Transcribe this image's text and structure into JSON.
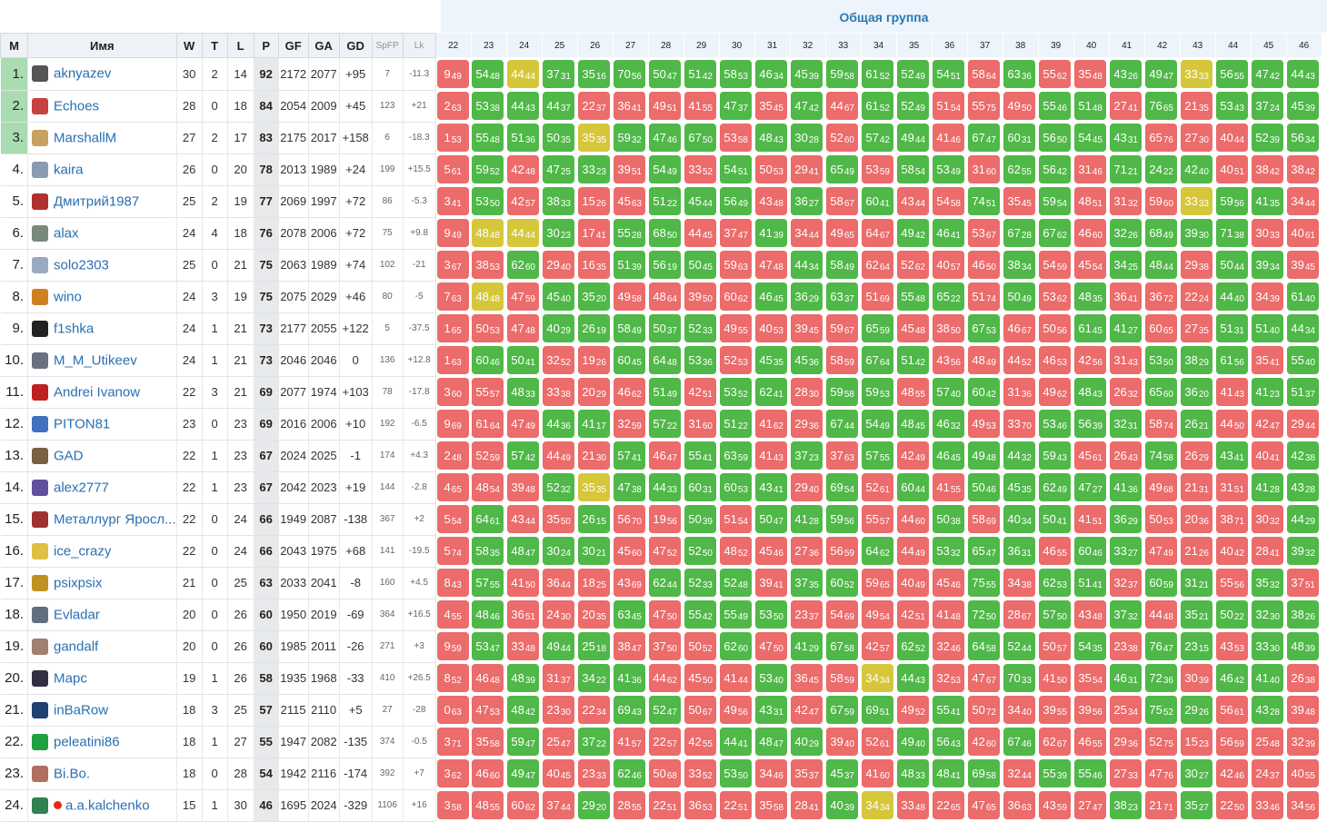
{
  "group_title": "Общая группа",
  "headers": {
    "pos": "М",
    "name": "Имя",
    "w": "W",
    "t": "T",
    "l": "L",
    "p": "P",
    "gf": "GF",
    "ga": "GA",
    "gd": "GD",
    "spfp": "SpFP",
    "lk": "Lk"
  },
  "rounds": [
    22,
    23,
    24,
    25,
    26,
    27,
    28,
    29,
    30,
    31,
    32,
    33,
    34,
    35,
    36,
    37,
    38,
    39,
    40,
    41,
    42,
    43,
    44,
    45,
    46
  ],
  "players": [
    {
      "pos": "1.",
      "name": "aknyazev",
      "w": 30,
      "t": 2,
      "l": 14,
      "p": 92,
      "gf": 2172,
      "ga": 2077,
      "gd": "+95",
      "spfp": 7,
      "lk": "-11.3",
      "avatar": "#555",
      "r": [
        "9/49",
        "54/48",
        "44/44",
        "37/31",
        "35/16",
        "70/56",
        "50/47",
        "51/42",
        "58/53",
        "46/34",
        "45/39",
        "59/58",
        "61/52",
        "52/49",
        "54/51",
        "58/64",
        "63/36",
        "55/62",
        "35/48",
        "43/26",
        "49/47",
        "33/33",
        "56/55",
        "47/42",
        "44/43"
      ]
    },
    {
      "pos": "2.",
      "name": "Echoes",
      "w": 28,
      "t": 0,
      "l": 18,
      "p": 84,
      "gf": 2054,
      "ga": 2009,
      "gd": "+45",
      "spfp": 123,
      "lk": "+21",
      "avatar": "#c84040",
      "r": [
        "2/63",
        "53/38",
        "44/43",
        "44/37",
        "22/37",
        "36/41",
        "49/51",
        "41/55",
        "47/37",
        "35/45",
        "47/42",
        "44/67",
        "61/52",
        "52/49",
        "51/54",
        "55/75",
        "49/50",
        "55/46",
        "51/48",
        "27/41",
        "76/65",
        "21/35",
        "53/43",
        "37/24",
        "45/39"
      ]
    },
    {
      "pos": "3.",
      "name": "MarshallM",
      "w": 27,
      "t": 2,
      "l": 17,
      "p": 83,
      "gf": 2175,
      "ga": 2017,
      "gd": "+158",
      "spfp": 6,
      "lk": "-18.3",
      "avatar": "#c8a060",
      "r": [
        "1/53",
        "55/48",
        "51/36",
        "50/35",
        "35/35",
        "59/32",
        "47/46",
        "67/50",
        "53/58",
        "48/43",
        "30/28",
        "52/60",
        "57/42",
        "49/44",
        "41/46",
        "67/47",
        "60/31",
        "56/50",
        "54/45",
        "43/31",
        "65/76",
        "27/30",
        "40/44",
        "52/39",
        "56/34"
      ]
    },
    {
      "pos": "4.",
      "name": "kaira",
      "w": 26,
      "t": 0,
      "l": 20,
      "p": 78,
      "gf": 2013,
      "ga": 1989,
      "gd": "+24",
      "spfp": 199,
      "lk": "+15.5",
      "avatar": "#8a9ab0",
      "r": [
        "5/61",
        "59/52",
        "42/48",
        "47/25",
        "33/23",
        "39/51",
        "54/49",
        "33/52",
        "54/51",
        "50/53",
        "29/41",
        "65/49",
        "53/59",
        "58/54",
        "53/49",
        "31/60",
        "62/55",
        "56/42",
        "31/46",
        "71/21",
        "24/22",
        "42/40",
        "40/51",
        "38/42",
        "38/42"
      ]
    },
    {
      "pos": "5.",
      "name": "Дмитрий1987",
      "w": 25,
      "t": 2,
      "l": 19,
      "p": 77,
      "gf": 2069,
      "ga": 1997,
      "gd": "+72",
      "spfp": 86,
      "lk": "-5.3",
      "avatar": "#b03030",
      "r": [
        "3/41",
        "53/50",
        "42/57",
        "38/33",
        "15/26",
        "45/63",
        "51/22",
        "45/44",
        "56/49",
        "43/48",
        "36/27",
        "58/67",
        "60/41",
        "43/44",
        "54/58",
        "74/51",
        "35/45",
        "59/54",
        "48/51",
        "31/32",
        "59/60",
        "33/33",
        "59/56",
        "41/35",
        "34/44"
      ]
    },
    {
      "pos": "6.",
      "name": "alax",
      "w": 24,
      "t": 4,
      "l": 18,
      "p": 76,
      "gf": 2078,
      "ga": 2006,
      "gd": "+72",
      "spfp": 75,
      "lk": "+9.8",
      "avatar": "#7a8a7a",
      "r": [
        "9/49",
        "48/48",
        "44/44",
        "30/23",
        "17/41",
        "55/28",
        "68/50",
        "44/45",
        "37/47",
        "41/39",
        "34/44",
        "49/65",
        "64/67",
        "49/42",
        "46/41",
        "53/67",
        "67/28",
        "67/62",
        "46/60",
        "32/26",
        "68/49",
        "39/30",
        "71/38",
        "30/33",
        "40/61"
      ]
    },
    {
      "pos": "7.",
      "name": "solo2303",
      "w": 25,
      "t": 0,
      "l": 21,
      "p": 75,
      "gf": 2063,
      "ga": 1989,
      "gd": "+74",
      "spfp": 102,
      "lk": "-21",
      "avatar": "#9aaac0",
      "r": [
        "3/67",
        "38/53",
        "62/60",
        "29/40",
        "16/35",
        "51/39",
        "56/19",
        "50/45",
        "59/63",
        "47/48",
        "44/34",
        "58/49",
        "62/64",
        "52/62",
        "40/57",
        "46/50",
        "38/34",
        "54/59",
        "45/54",
        "34/25",
        "48/44",
        "29/38",
        "50/44",
        "39/34",
        "39/45"
      ]
    },
    {
      "pos": "8.",
      "name": "wino",
      "w": 24,
      "t": 3,
      "l": 19,
      "p": 75,
      "gf": 2075,
      "ga": 2029,
      "gd": "+46",
      "spfp": 80,
      "lk": "-5",
      "avatar": "#d08020",
      "r": [
        "7/63",
        "48/48",
        "47/59",
        "45/40",
        "35/20",
        "49/58",
        "48/64",
        "39/50",
        "60/62",
        "46/45",
        "36/29",
        "63/37",
        "51/69",
        "55/48",
        "65/22",
        "51/74",
        "50/49",
        "53/62",
        "48/35",
        "36/41",
        "36/72",
        "22/24",
        "44/40",
        "34/39",
        "61/40"
      ]
    },
    {
      "pos": "9.",
      "name": "f1shka",
      "w": 24,
      "t": 1,
      "l": 21,
      "p": 73,
      "gf": 2177,
      "ga": 2055,
      "gd": "+122",
      "spfp": 5,
      "lk": "-37.5",
      "avatar": "#222",
      "r": [
        "1/65",
        "50/53",
        "47/48",
        "40/29",
        "26/19",
        "58/49",
        "50/37",
        "52/33",
        "49/55",
        "40/53",
        "39/45",
        "59/67",
        "65/59",
        "45/48",
        "38/50",
        "67/53",
        "46/67",
        "50/56",
        "61/45",
        "41/27",
        "60/65",
        "27/35",
        "51/31",
        "51/40",
        "44/34"
      ]
    },
    {
      "pos": "10.",
      "name": "M_M_Utikeev",
      "w": 24,
      "t": 1,
      "l": 21,
      "p": 73,
      "gf": 2046,
      "ga": 2046,
      "gd": "0",
      "spfp": 136,
      "lk": "+12.8",
      "avatar": "#6a7080",
      "r": [
        "1/63",
        "60/46",
        "50/41",
        "32/52",
        "19/26",
        "60/45",
        "64/48",
        "53/36",
        "52/53",
        "45/35",
        "45/36",
        "58/59",
        "67/64",
        "51/42",
        "43/56",
        "48/49",
        "44/52",
        "46/53",
        "42/56",
        "31/43",
        "53/50",
        "38/29",
        "61/56",
        "35/41",
        "55/40"
      ]
    },
    {
      "pos": "11.",
      "name": "Andrei Ivanow",
      "w": 22,
      "t": 3,
      "l": 21,
      "p": 69,
      "gf": 2077,
      "ga": 1974,
      "gd": "+103",
      "spfp": 78,
      "lk": "-17.8",
      "avatar": "#c02020",
      "r": [
        "3/60",
        "55/57",
        "48/33",
        "33/38",
        "20/29",
        "46/62",
        "51/49",
        "42/51",
        "53/52",
        "62/41",
        "28/30",
        "59/58",
        "59/53",
        "48/55",
        "57/40",
        "60/42",
        "31/36",
        "49/62",
        "48/43",
        "26/32",
        "65/60",
        "36/20",
        "41/43",
        "41/23",
        "51/37"
      ]
    },
    {
      "pos": "12.",
      "name": "PITON81",
      "w": 23,
      "t": 0,
      "l": 23,
      "p": 69,
      "gf": 2016,
      "ga": 2006,
      "gd": "+10",
      "spfp": 192,
      "lk": "-6.5",
      "avatar": "#4070c0",
      "r": [
        "9/69",
        "61/64",
        "47/49",
        "44/36",
        "41/17",
        "32/59",
        "57/22",
        "31/60",
        "51/22",
        "41/62",
        "29/36",
        "67/44",
        "54/49",
        "48/45",
        "46/32",
        "49/53",
        "33/70",
        "53/46",
        "56/39",
        "32/31",
        "58/74",
        "26/21",
        "44/50",
        "42/47",
        "29/44"
      ]
    },
    {
      "pos": "13.",
      "name": "GAD",
      "w": 22,
      "t": 1,
      "l": 23,
      "p": 67,
      "gf": 2024,
      "ga": 2025,
      "gd": "-1",
      "spfp": 174,
      "lk": "+4.3",
      "avatar": "#7a6040",
      "r": [
        "2/48",
        "52/59",
        "57/42",
        "44/49",
        "21/30",
        "57/41",
        "46/47",
        "55/41",
        "63/59",
        "41/43",
        "37/23",
        "37/63",
        "57/55",
        "42/49",
        "46/45",
        "49/48",
        "44/32",
        "59/43",
        "45/61",
        "26/43",
        "74/58",
        "26/29",
        "43/41",
        "40/41",
        "42/38"
      ]
    },
    {
      "pos": "14.",
      "name": "alex2777",
      "w": 22,
      "t": 1,
      "l": 23,
      "p": 67,
      "gf": 2042,
      "ga": 2023,
      "gd": "+19",
      "spfp": 144,
      "lk": "-2.8",
      "avatar": "#6050a0",
      "r": [
        "4/65",
        "48/54",
        "39/48",
        "52/32",
        "35/35",
        "47/38",
        "44/33",
        "60/31",
        "60/53",
        "43/41",
        "29/40",
        "69/54",
        "52/61",
        "60/44",
        "41/55",
        "50/46",
        "45/35",
        "62/49",
        "47/27",
        "41/36",
        "49/68",
        "21/31",
        "31/51",
        "41/28",
        "43/28"
      ]
    },
    {
      "pos": "15.",
      "name": "Металлург Яросл...",
      "w": 22,
      "t": 0,
      "l": 24,
      "p": 66,
      "gf": 1949,
      "ga": 2087,
      "gd": "-138",
      "spfp": 367,
      "lk": "+2",
      "avatar": "#a03030",
      "r": [
        "5/54",
        "64/61",
        "43/44",
        "35/50",
        "26/15",
        "56/70",
        "19/56",
        "50/39",
        "51/54",
        "50/47",
        "41/28",
        "59/56",
        "55/57",
        "44/60",
        "50/38",
        "58/69",
        "40/34",
        "50/41",
        "41/51",
        "36/29",
        "50/53",
        "20/36",
        "38/71",
        "30/32",
        "44/29"
      ]
    },
    {
      "pos": "16.",
      "name": "ice_crazy",
      "w": 22,
      "t": 0,
      "l": 24,
      "p": 66,
      "gf": 2043,
      "ga": 1975,
      "gd": "+68",
      "spfp": 141,
      "lk": "-19.5",
      "avatar": "#e0c040",
      "r": [
        "5/74",
        "58/35",
        "48/47",
        "30/24",
        "30/21",
        "45/60",
        "47/52",
        "52/50",
        "48/52",
        "45/46",
        "27/36",
        "56/59",
        "64/62",
        "44/49",
        "53/32",
        "65/47",
        "36/31",
        "46/55",
        "60/46",
        "33/27",
        "47/49",
        "21/26",
        "40/42",
        "28/41",
        "39/32"
      ]
    },
    {
      "pos": "17.",
      "name": "psixpsix",
      "w": 21,
      "t": 0,
      "l": 25,
      "p": 63,
      "gf": 2033,
      "ga": 2041,
      "gd": "-8",
      "spfp": 160,
      "lk": "+4.5",
      "avatar": "#c09020",
      "r": [
        "8/43",
        "57/55",
        "41/50",
        "36/44",
        "18/25",
        "43/69",
        "62/44",
        "52/33",
        "52/48",
        "39/41",
        "37/35",
        "60/52",
        "59/65",
        "40/49",
        "45/46",
        "75/55",
        "34/38",
        "62/53",
        "51/41",
        "32/37",
        "60/59",
        "31/21",
        "55/56",
        "35/32",
        "37/51"
      ]
    },
    {
      "pos": "18.",
      "name": "Evladar",
      "w": 20,
      "t": 0,
      "l": 26,
      "p": 60,
      "gf": 1950,
      "ga": 2019,
      "gd": "-69",
      "spfp": 364,
      "lk": "+16.5",
      "avatar": "#607080",
      "r": [
        "4/55",
        "48/46",
        "36/51",
        "24/30",
        "20/35",
        "63/45",
        "47/50",
        "55/42",
        "55/49",
        "53/50",
        "23/37",
        "54/69",
        "49/54",
        "42/51",
        "41/48",
        "72/50",
        "28/67",
        "57/50",
        "43/48",
        "37/32",
        "44/48",
        "35/21",
        "50/22",
        "32/30",
        "38/26"
      ]
    },
    {
      "pos": "19.",
      "name": "gandalf",
      "w": 20,
      "t": 0,
      "l": 26,
      "p": 60,
      "gf": 1985,
      "ga": 2011,
      "gd": "-26",
      "spfp": 271,
      "lk": "+3",
      "avatar": "#a08070",
      "r": [
        "9/59",
        "53/47",
        "33/48",
        "49/44",
        "25/18",
        "38/47",
        "37/50",
        "50/52",
        "62/60",
        "47/50",
        "41/29",
        "67/58",
        "42/57",
        "62/52",
        "32/46",
        "64/58",
        "52/44",
        "50/57",
        "54/35",
        "23/38",
        "76/47",
        "23/15",
        "43/53",
        "33/30",
        "48/39"
      ]
    },
    {
      "pos": "20.",
      "name": "Марс",
      "w": 19,
      "t": 1,
      "l": 26,
      "p": 58,
      "gf": 1935,
      "ga": 1968,
      "gd": "-33",
      "spfp": 410,
      "lk": "+26.5",
      "avatar": "#303040",
      "r": [
        "8/52",
        "46/48",
        "48/39",
        "31/37",
        "34/22",
        "41/36",
        "44/62",
        "45/50",
        "41/44",
        "53/40",
        "36/45",
        "58/59",
        "34/34",
        "44/43",
        "32/53",
        "47/67",
        "70/33",
        "41/50",
        "35/54",
        "46/31",
        "72/36",
        "30/39",
        "46/42",
        "41/40",
        "26/38"
      ]
    },
    {
      "pos": "21.",
      "name": "inBaRow",
      "w": 18,
      "t": 3,
      "l": 25,
      "p": 57,
      "gf": 2115,
      "ga": 2110,
      "gd": "+5",
      "spfp": 27,
      "lk": "-28",
      "avatar": "#204070",
      "r": [
        "0/63",
        "47/53",
        "48/42",
        "23/30",
        "22/34",
        "69/43",
        "52/47",
        "50/67",
        "49/56",
        "43/31",
        "42/47",
        "67/59",
        "69/51",
        "49/52",
        "55/41",
        "50/72",
        "34/40",
        "39/55",
        "39/56",
        "25/34",
        "75/52",
        "29/26",
        "56/61",
        "43/28",
        "39/48"
      ]
    },
    {
      "pos": "22.",
      "name": "peleatini86",
      "w": 18,
      "t": 1,
      "l": 27,
      "p": 55,
      "gf": 1947,
      "ga": 2082,
      "gd": "-135",
      "spfp": 374,
      "lk": "-0.5",
      "avatar": "#20a040",
      "r": [
        "3/71",
        "35/58",
        "59/47",
        "25/47",
        "37/22",
        "41/57",
        "22/57",
        "42/55",
        "44/41",
        "48/47",
        "40/29",
        "39/40",
        "52/61",
        "49/40",
        "56/43",
        "42/60",
        "67/46",
        "62/67",
        "46/55",
        "29/36",
        "52/75",
        "15/23",
        "56/59",
        "25/48",
        "32/39"
      ]
    },
    {
      "pos": "23.",
      "name": "Bi.Bo.",
      "w": 18,
      "t": 0,
      "l": 28,
      "p": 54,
      "gf": 1942,
      "ga": 2116,
      "gd": "-174",
      "spfp": 392,
      "lk": "+7",
      "avatar": "#b07060",
      "r": [
        "3/62",
        "46/60",
        "49/47",
        "40/45",
        "23/33",
        "62/46",
        "50/68",
        "33/52",
        "53/50",
        "34/46",
        "35/37",
        "45/37",
        "41/60",
        "48/33",
        "48/41",
        "69/58",
        "32/44",
        "55/39",
        "55/46",
        "27/33",
        "47/76",
        "30/27",
        "42/46",
        "24/37",
        "40/55"
      ]
    },
    {
      "pos": "24.",
      "name": "a.a.kalchenko",
      "w": 15,
      "t": 1,
      "l": 30,
      "p": 46,
      "gf": 1695,
      "ga": 2024,
      "gd": "-329",
      "spfp": 1106,
      "lk": "+16",
      "avatar": "#308050",
      "r": [
        "3/58",
        "48/55",
        "60/62",
        "37/44",
        "29/20",
        "28/55",
        "22/51",
        "36/53",
        "22/51",
        "35/58",
        "28/41",
        "40/39",
        "34/34",
        "33/48",
        "22/65",
        "47/65",
        "36/63",
        "43/59",
        "27/47",
        "38/23",
        "21/71",
        "35/27",
        "22/50",
        "33/46",
        "34/56"
      ]
    }
  ]
}
